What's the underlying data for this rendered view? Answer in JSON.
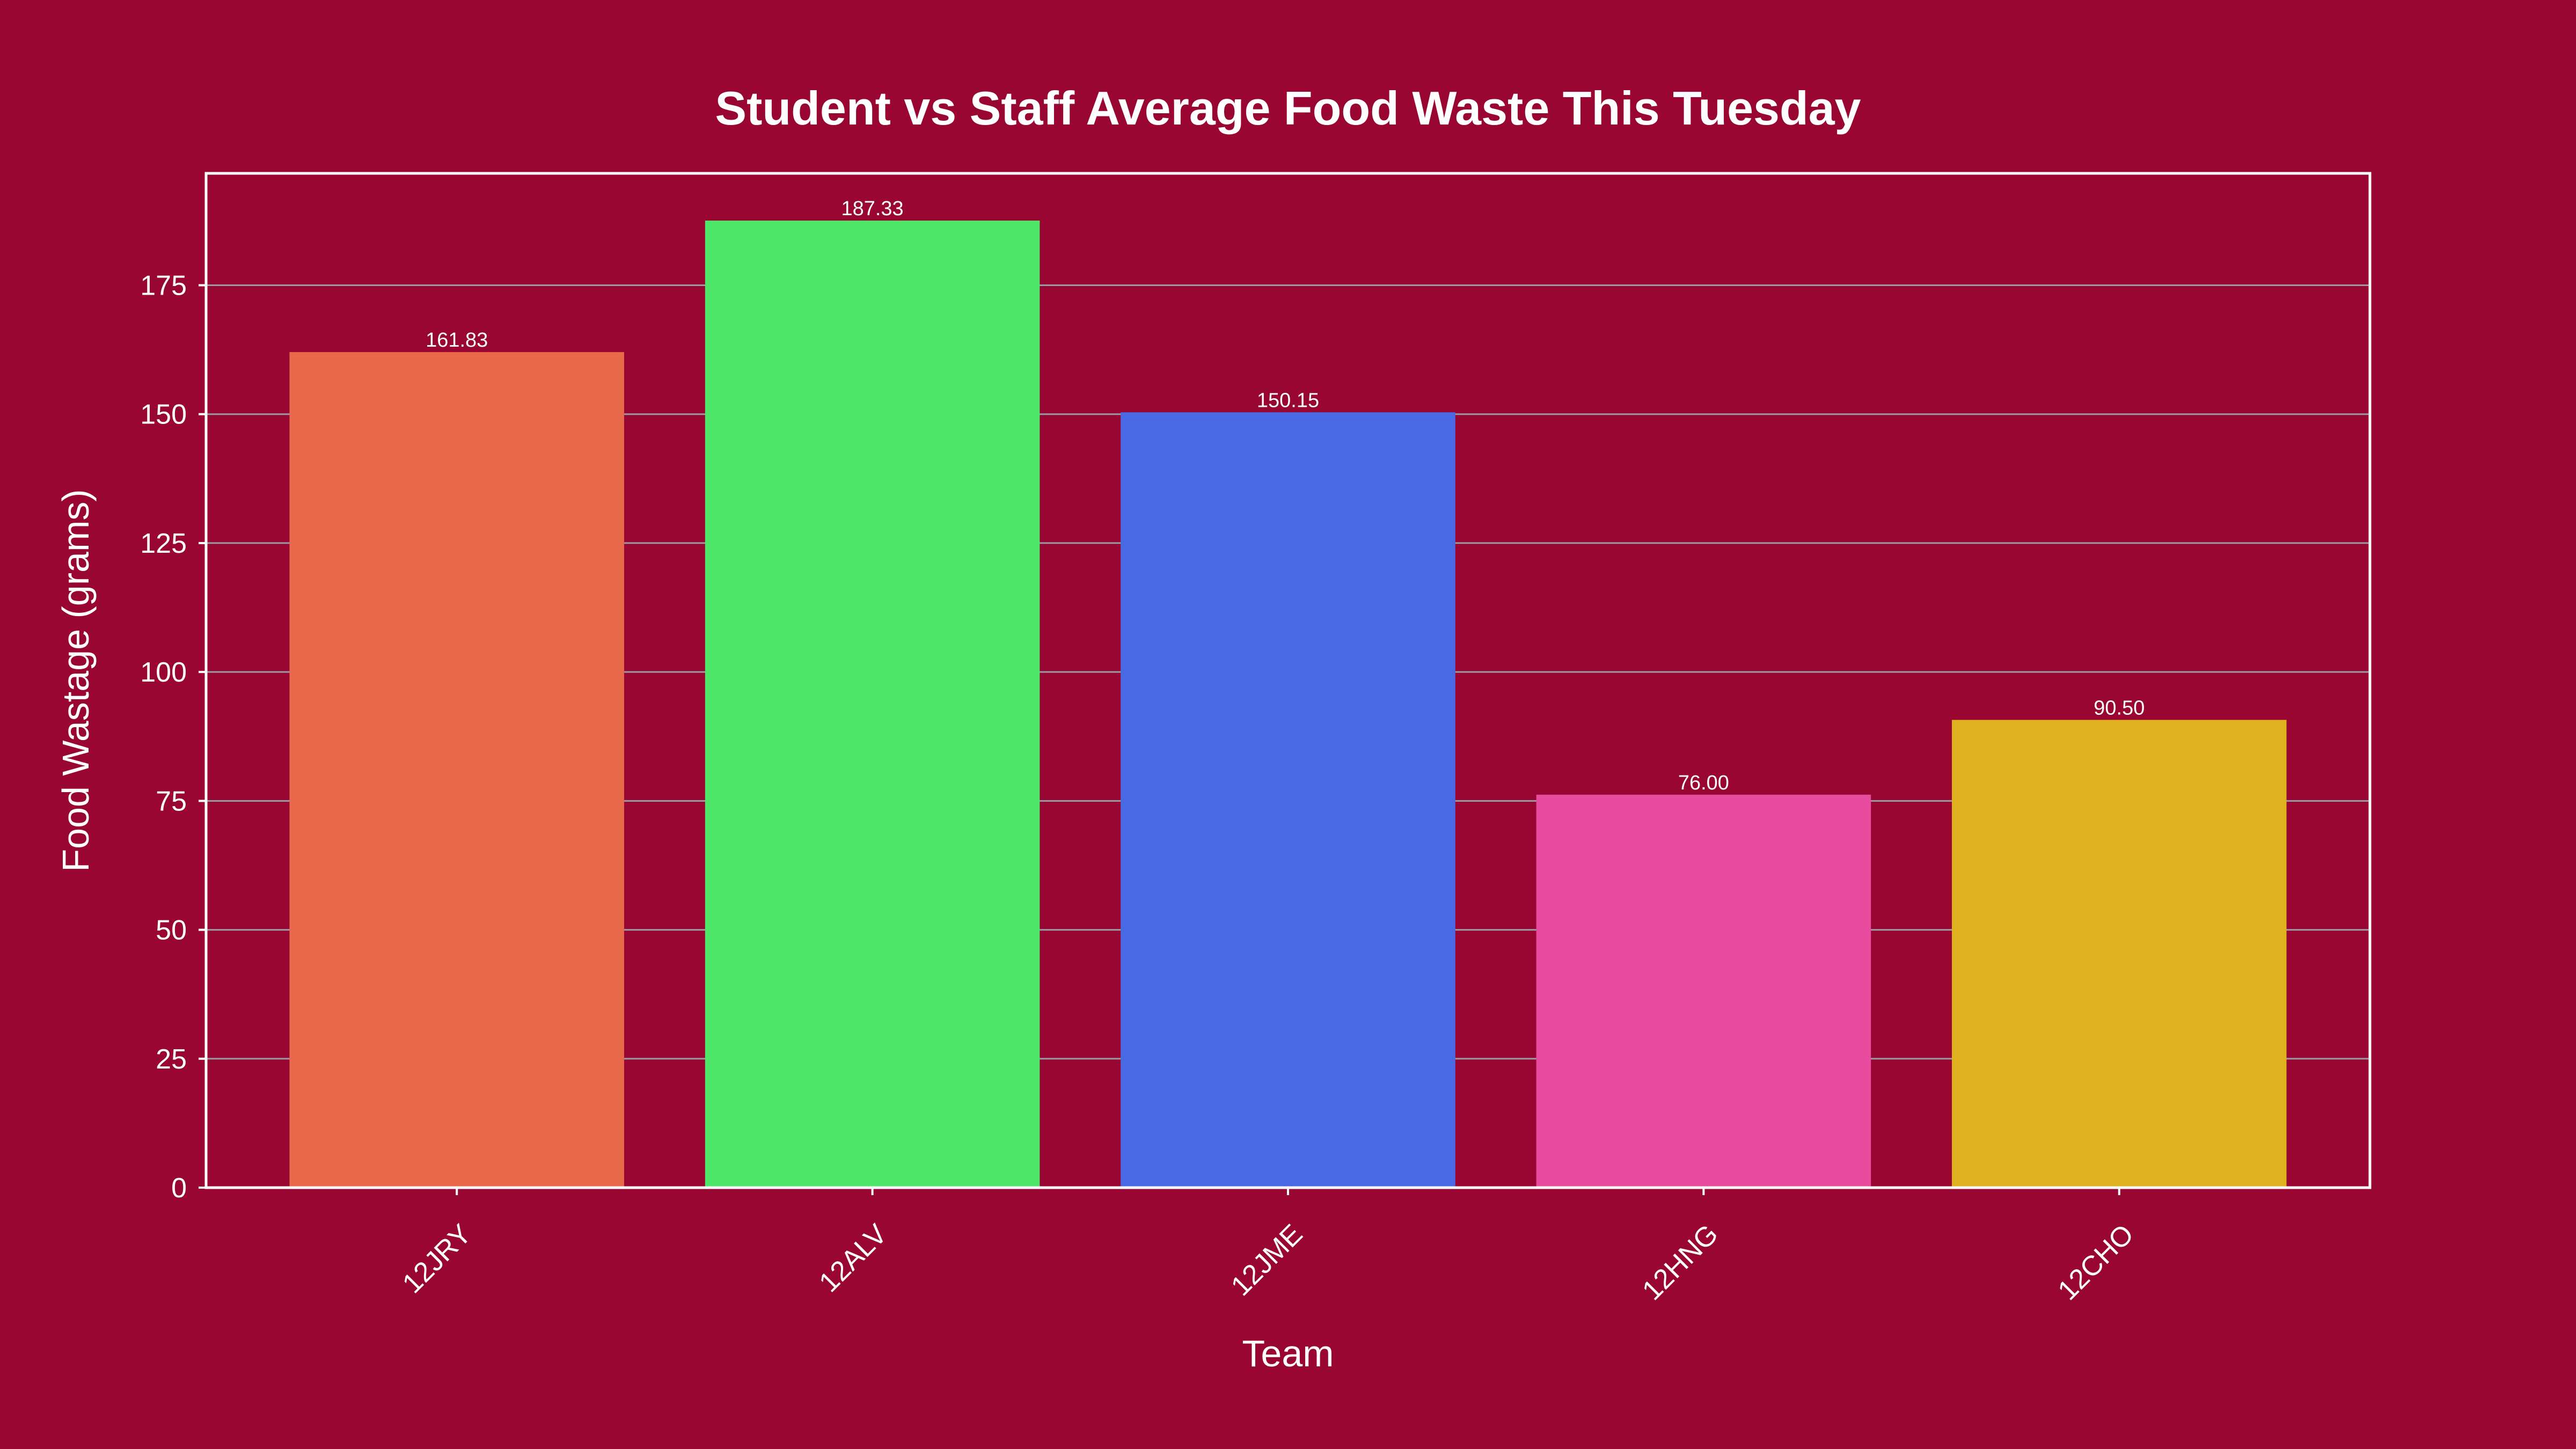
{
  "chart_data": {
    "type": "bar",
    "title": "Student vs Staff Average Food Waste This Tuesday",
    "xlabel": "Team",
    "ylabel": "Food Wastage (grams)",
    "categories": [
      "12JRY",
      "12ALV",
      "12JME",
      "12HNG",
      "12CHO"
    ],
    "values": [
      161.83,
      187.33,
      150.15,
      76.0,
      90.5
    ],
    "value_labels": [
      "161.83",
      "187.33",
      "150.15",
      "76.00",
      "90.50"
    ],
    "colors": [
      "#E8694C",
      "#4DE86A",
      "#4A69E5",
      "#E84C9F",
      "#E0B21F"
    ],
    "yticks": [
      0,
      25,
      50,
      75,
      100,
      125,
      150,
      175
    ],
    "ylim": [
      0,
      196.7
    ],
    "grid": true,
    "background_color": "#990632"
  }
}
